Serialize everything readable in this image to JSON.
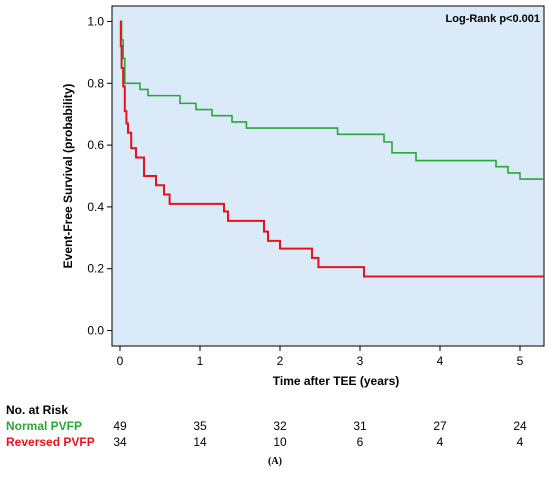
{
  "chart_data": {
    "type": "line",
    "step": true,
    "annotation": "Log-Rank p<0.001",
    "xlabel": "Time after TEE (years)",
    "ylabel": "Event-Free Survival (probability)",
    "xlim": [
      -0.1,
      5.3
    ],
    "ylim": [
      -0.05,
      1.05
    ],
    "x_ticks": [
      0,
      1,
      2,
      3,
      4,
      5
    ],
    "y_ticks": [
      0.0,
      0.2,
      0.4,
      0.6,
      0.8,
      1.0
    ],
    "y_tick_labels": [
      "0.0",
      "0.2",
      "0.4",
      "0.6",
      "0.8",
      "1.0"
    ],
    "series": [
      {
        "name": "Normal PVFP",
        "color": "#29a837",
        "x": [
          0,
          0.02,
          0.04,
          0.06,
          0.25,
          0.35,
          0.75,
          0.95,
          1.15,
          1.4,
          1.58,
          2.72,
          3.3,
          3.4,
          3.7,
          4.7,
          4.85,
          5.0,
          5.3
        ],
        "y": [
          1.0,
          0.94,
          0.88,
          0.8,
          0.78,
          0.76,
          0.735,
          0.715,
          0.695,
          0.675,
          0.655,
          0.635,
          0.61,
          0.575,
          0.55,
          0.53,
          0.51,
          0.49,
          0.49
        ]
      },
      {
        "name": "Reversed PVFP",
        "color": "#e8121c",
        "x": [
          0,
          0.01,
          0.02,
          0.04,
          0.06,
          0.08,
          0.1,
          0.14,
          0.2,
          0.3,
          0.45,
          0.55,
          0.62,
          1.3,
          1.35,
          1.8,
          1.85,
          2.0,
          2.4,
          2.48,
          3.05,
          5.3
        ],
        "y": [
          1.0,
          0.92,
          0.85,
          0.79,
          0.71,
          0.67,
          0.64,
          0.59,
          0.56,
          0.5,
          0.47,
          0.44,
          0.41,
          0.385,
          0.355,
          0.32,
          0.29,
          0.265,
          0.235,
          0.205,
          0.175,
          0.175
        ]
      }
    ]
  },
  "risk_table": {
    "title": "No. at Risk",
    "rows": [
      {
        "label": "Normal PVFP",
        "color": "#29a837",
        "values": [
          "49",
          "35",
          "32",
          "31",
          "27",
          "24"
        ]
      },
      {
        "label": "Reversed PVFP",
        "color": "#e8121c",
        "values": [
          "34",
          "14",
          "10",
          "6",
          "4",
          "4"
        ]
      }
    ]
  },
  "caption": "(A)"
}
